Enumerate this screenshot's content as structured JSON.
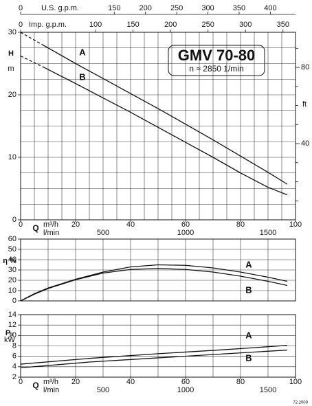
{
  "chart_data": [
    {
      "type": "line",
      "title": "GMV 70-80",
      "subtitle": "n ≈ 2850 1/min",
      "ylabel": "H",
      "yunit": "m",
      "xlabel": "Q",
      "xunit": "m³/h",
      "x": [
        0,
        8,
        20,
        30,
        40,
        50,
        60,
        70,
        80,
        90,
        97
      ],
      "series": [
        {
          "name": "A",
          "color": "#111111",
          "values": [
            null,
            28,
            25,
            22.6,
            20.2,
            17.8,
            15.3,
            12.8,
            10.2,
            7.6,
            5.7
          ]
        },
        {
          "name": "B",
          "color": "#111111",
          "values": [
            null,
            24.5,
            21.8,
            19.5,
            17.2,
            14.8,
            12.4,
            10,
            7.5,
            5.2,
            4
          ]
        },
        {
          "color": "#111111",
          "dashed": true,
          "values": [
            30,
            28,
            null,
            null,
            null,
            null,
            null,
            null,
            null,
            null,
            null
          ]
        },
        {
          "color": "#111111",
          "dashed": true,
          "values": [
            26.2,
            24.5,
            null,
            null,
            null,
            null,
            null,
            null,
            null,
            null,
            null
          ]
        }
      ],
      "xlim": [
        0,
        100
      ],
      "xticks": [
        0,
        20,
        40,
        60,
        80,
        100
      ],
      "x2": {
        "label": "l/min",
        "lim": [
          0,
          1666.7
        ],
        "ticks": [
          500,
          1000,
          1500
        ]
      },
      "xgrid": [
        5,
        10,
        15,
        20,
        25,
        30,
        35,
        40,
        45,
        50,
        55,
        60,
        65,
        70,
        75,
        80,
        85,
        90,
        95
      ],
      "ylim": [
        0,
        30
      ],
      "yticks": [
        0,
        10,
        20,
        30
      ],
      "ygrid": [
        2.5,
        5,
        7.5,
        10,
        12.5,
        15,
        17.5,
        20,
        22.5,
        25,
        27.5
      ],
      "y2label": "ft",
      "y2lim": [
        0,
        98.4
      ],
      "y2ticks": [
        40,
        80
      ],
      "y2minor": [
        10,
        20,
        30,
        50,
        60,
        70,
        90
      ],
      "top_axes": [
        {
          "label": "U.S. g.p.m.",
          "lim": [
            0,
            440.3
          ],
          "ticks": [
            0,
            150,
            200,
            250,
            300,
            350,
            400
          ]
        },
        {
          "label": "Imp. g.p.m.",
          "lim": [
            0,
            366.7
          ],
          "ticks": [
            0,
            100,
            150,
            200,
            250,
            300,
            350
          ]
        }
      ]
    },
    {
      "type": "line",
      "ylabel": "η %",
      "x": [
        0,
        5,
        10,
        20,
        30,
        40,
        50,
        60,
        70,
        80,
        90,
        97
      ],
      "series": [
        {
          "name": "A",
          "color": "#111111",
          "values": [
            0,
            7,
            12.5,
            21,
            28,
            33,
            35,
            34.5,
            32,
            28,
            23,
            19
          ]
        },
        {
          "name": "B",
          "color": "#111111",
          "values": [
            0,
            6.5,
            12,
            20.5,
            27,
            30.5,
            31.5,
            30.5,
            28,
            24,
            19,
            15
          ]
        }
      ],
      "xlim": [
        0,
        100
      ],
      "xgrid": [
        10,
        20,
        30,
        40,
        50,
        60,
        70,
        80,
        90
      ],
      "ylim": [
        0,
        60
      ],
      "yticks": [
        0,
        10,
        20,
        30,
        40,
        50,
        60
      ],
      "ygrid": [
        10,
        20,
        30,
        40,
        50
      ]
    },
    {
      "type": "line",
      "ylabel": "P₂",
      "yunit": "kW",
      "xlabel": "Q",
      "xunit": "m³/h",
      "x": [
        0,
        25,
        50,
        75,
        97
      ],
      "series": [
        {
          "name": "A",
          "color": "#111111",
          "values": [
            4.5,
            5.6,
            6.5,
            7.3,
            8.1
          ]
        },
        {
          "name": "B",
          "color": "#111111",
          "values": [
            3.8,
            4.9,
            5.7,
            6.5,
            7.2
          ]
        }
      ],
      "xlim": [
        0,
        100
      ],
      "xticks": [
        0,
        20,
        40,
        60,
        80,
        100
      ],
      "x2": {
        "label": "l/min",
        "lim": [
          0,
          1666.7
        ],
        "ticks": [
          500,
          1000,
          1500
        ]
      },
      "xgrid": [
        10,
        20,
        30,
        40,
        50,
        60,
        70,
        80,
        90
      ],
      "ylim": [
        2,
        14
      ],
      "yticks": [
        2,
        4,
        6,
        8,
        10,
        12,
        14
      ],
      "ygrid": [
        4,
        6,
        8,
        10,
        12
      ]
    }
  ],
  "footnote": "72.2009"
}
